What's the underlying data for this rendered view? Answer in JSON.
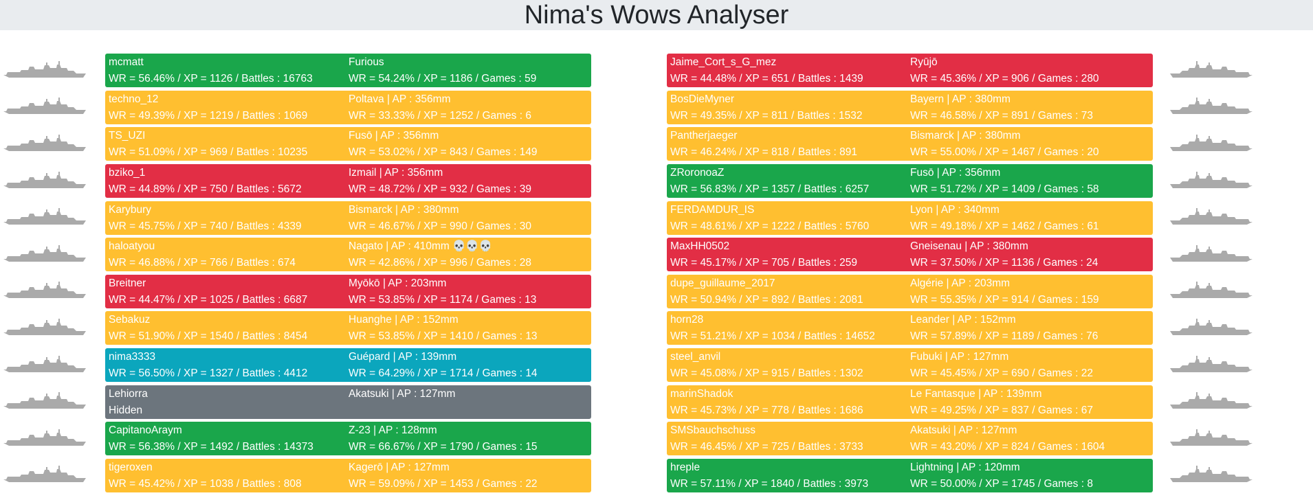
{
  "title": "Nima's Wows Analyser",
  "colors": {
    "green": "#1aa64b",
    "yellow": "#ffbf30",
    "red": "#e22e45",
    "cyan": "#0ba6bd",
    "gray": "#6c757d",
    "ship_silhouette": "#aaaaaa",
    "header_bg": "#e9ecef"
  },
  "left_team": [
    {
      "color": "green",
      "player": "mcmatt",
      "player_stats": "WR = 56.46% / XP = 1126 / Battles : 16763",
      "ship": "Furious",
      "ship_stats": "WR = 54.24% / XP = 1186 / Games : 59"
    },
    {
      "color": "yellow",
      "player": "techno_12",
      "player_stats": "WR = 49.39% / XP = 1219 / Battles : 1069",
      "ship": "Poltava | AP : 356mm",
      "ship_stats": "WR = 33.33% / XP = 1252 / Games : 6"
    },
    {
      "color": "yellow",
      "player": "TS_UZI",
      "player_stats": "WR = 51.09% / XP = 969 / Battles : 10235",
      "ship": "Fusō | AP : 356mm",
      "ship_stats": "WR = 53.02% / XP = 843 / Games : 149"
    },
    {
      "color": "red",
      "player": "bziko_1",
      "player_stats": "WR = 44.89% / XP = 750 / Battles : 5672",
      "ship": "Izmail | AP : 356mm",
      "ship_stats": "WR = 48.72% / XP = 932 / Games : 39"
    },
    {
      "color": "yellow",
      "player": "Karybury",
      "player_stats": "WR = 45.75% / XP = 740 / Battles : 4339",
      "ship": "Bismarck | AP : 380mm",
      "ship_stats": "WR = 46.67% / XP = 990 / Games : 30"
    },
    {
      "color": "yellow",
      "player": "haloatyou",
      "player_stats": "WR = 46.88% / XP = 766 / Battles : 674",
      "ship": "Nagato | AP : 410mm 💀💀💀",
      "ship_stats": "WR = 42.86% / XP = 996 / Games : 28"
    },
    {
      "color": "red",
      "player": "Breitner",
      "player_stats": "WR = 44.47% / XP = 1025 / Battles : 6687",
      "ship": "Myōkō | AP : 203mm",
      "ship_stats": "WR = 53.85% / XP = 1174 / Games : 13"
    },
    {
      "color": "yellow",
      "player": "Sebakuz",
      "player_stats": "WR = 51.90% / XP = 1540 / Battles : 8454",
      "ship": "Huanghe | AP : 152mm",
      "ship_stats": "WR = 53.85% / XP = 1410 / Games : 13"
    },
    {
      "color": "cyan",
      "player": "nima3333",
      "player_stats": "WR = 56.50% / XP = 1327 / Battles : 4412",
      "ship": "Guépard | AP : 139mm",
      "ship_stats": "WR = 64.29% / XP = 1714 / Games : 14"
    },
    {
      "color": "gray",
      "player": "Lehiorra",
      "player_stats": "Hidden",
      "ship": "Akatsuki | AP : 127mm",
      "ship_stats": ""
    },
    {
      "color": "green",
      "player": "CapitanoAraym",
      "player_stats": "WR = 56.38% / XP = 1492 / Battles : 14373",
      "ship": "Z-23 | AP : 128mm",
      "ship_stats": "WR = 66.67% / XP = 1790 / Games : 15"
    },
    {
      "color": "yellow",
      "player": "tigeroxen",
      "player_stats": "WR = 45.42% / XP = 1038 / Battles : 808",
      "ship": "Kagerō | AP : 127mm",
      "ship_stats": "WR = 59.09% / XP = 1453 / Games : 22"
    }
  ],
  "right_team": [
    {
      "color": "red",
      "player": "Jaime_Cort_s_G_mez",
      "player_stats": "WR = 44.48% / XP = 651 / Battles : 1439",
      "ship": "Ryūjō",
      "ship_stats": "WR = 45.36% / XP = 906 / Games : 280"
    },
    {
      "color": "yellow",
      "player": "BosDieMyner",
      "player_stats": "WR = 49.35% / XP = 811 / Battles : 1532",
      "ship": "Bayern | AP : 380mm",
      "ship_stats": "WR = 46.58% / XP = 891 / Games : 73"
    },
    {
      "color": "yellow",
      "player": "Pantherjaeger",
      "player_stats": "WR = 46.24% / XP = 818 / Battles : 891",
      "ship": "Bismarck | AP : 380mm",
      "ship_stats": "WR = 55.00% / XP = 1467 / Games : 20"
    },
    {
      "color": "green",
      "player": "ZRoronoaZ",
      "player_stats": "WR = 56.83% / XP = 1357 / Battles : 6257",
      "ship": "Fusō | AP : 356mm",
      "ship_stats": "WR = 51.72% / XP = 1409 / Games : 58"
    },
    {
      "color": "yellow",
      "player": "FERDAMDUR_IS",
      "player_stats": "WR = 48.61% / XP = 1222 / Battles : 5760",
      "ship": "Lyon | AP : 340mm",
      "ship_stats": "WR = 49.18% / XP = 1462 / Games : 61"
    },
    {
      "color": "red",
      "player": "MaxHH0502",
      "player_stats": "WR = 45.17% / XP = 705 / Battles : 259",
      "ship": "Gneisenau | AP : 380mm",
      "ship_stats": "WR = 37.50% / XP = 1136 / Games : 24"
    },
    {
      "color": "yellow",
      "player": "dupe_guillaume_2017",
      "player_stats": "WR = 50.94% / XP = 892 / Battles : 2081",
      "ship": "Algérie | AP : 203mm",
      "ship_stats": "WR = 55.35% / XP = 914 / Games : 159"
    },
    {
      "color": "yellow",
      "player": "horn28",
      "player_stats": "WR = 51.21% / XP = 1034 / Battles : 14652",
      "ship": "Leander | AP : 152mm",
      "ship_stats": "WR = 57.89% / XP = 1189 / Games : 76"
    },
    {
      "color": "yellow",
      "player": "steel_anvil",
      "player_stats": "WR = 45.08% / XP = 915 / Battles : 1302",
      "ship": "Fubuki | AP : 127mm",
      "ship_stats": "WR = 45.45% / XP = 690 / Games : 22"
    },
    {
      "color": "yellow",
      "player": "marinShadok",
      "player_stats": "WR = 45.73% / XP = 778 / Battles : 1686",
      "ship": "Le Fantasque | AP : 139mm",
      "ship_stats": "WR = 49.25% / XP = 837 / Games : 67"
    },
    {
      "color": "yellow",
      "player": "SMSbauchschuss",
      "player_stats": "WR = 46.45% / XP = 725 / Battles : 3733",
      "ship": "Akatsuki | AP : 127mm",
      "ship_stats": "WR = 43.20% / XP = 824 / Games : 1604"
    },
    {
      "color": "green",
      "player": "hreple",
      "player_stats": "WR = 57.11% / XP = 1840 / Battles : 3973",
      "ship": "Lightning | AP : 120mm",
      "ship_stats": "WR = 50.00% / XP = 1745 / Games : 8"
    }
  ]
}
